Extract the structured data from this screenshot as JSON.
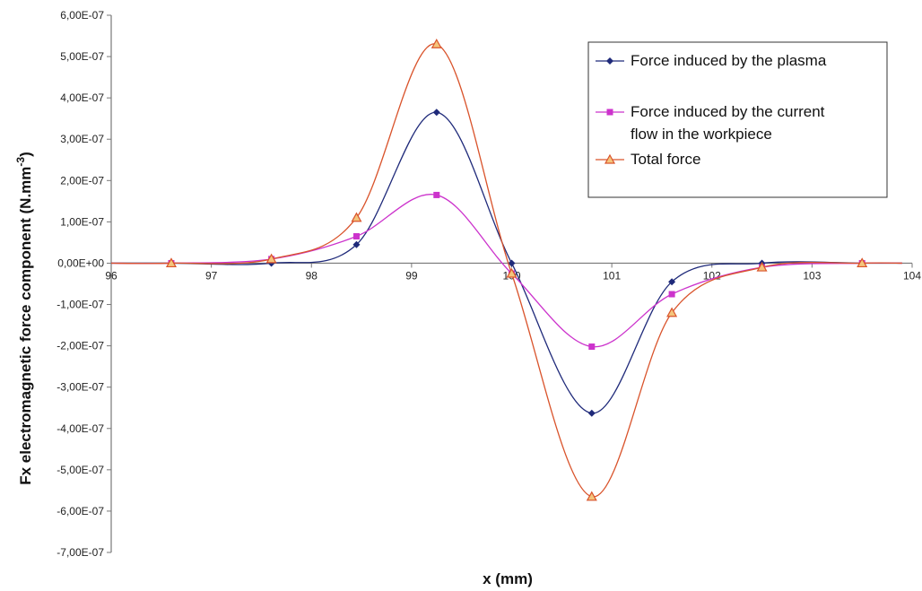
{
  "chart_data": {
    "type": "line",
    "xlabel": "x (mm)",
    "ylabel_main": "Fx electromagnetic force component (N.mm",
    "ylabel_sup": "-3",
    "ylabel_close": ")",
    "xlim": [
      96,
      104
    ],
    "ylim": [
      -7e-07,
      6e-07
    ],
    "x_ticks": [
      96,
      97,
      98,
      99,
      100,
      101,
      102,
      103,
      104
    ],
    "x_tick_labels": [
      "96",
      "97",
      "98",
      "99",
      "100",
      "101",
      "102",
      "103",
      "104"
    ],
    "y_ticks": [
      6e-07,
      5e-07,
      4e-07,
      3e-07,
      2e-07,
      1e-07,
      0,
      -1e-07,
      -2e-07,
      -3e-07,
      -4e-07,
      -5e-07,
      -6e-07,
      -7e-07
    ],
    "y_tick_labels": [
      "6,00E-07",
      "5,00E-07",
      "4,00E-07",
      "3,00E-07",
      "2,00E-07",
      "1,00E-07",
      "0,00E+00",
      "-1,00E-07",
      "-2,00E-07",
      "-3,00E-07",
      "-4,00E-07",
      "-5,00E-07",
      "-6,00E-07",
      "-7,00E-07"
    ],
    "grid": false,
    "legend_position": "top-right",
    "series": [
      {
        "name": "Force induced by the plasma",
        "color": "#1f2a7a",
        "marker": "diamond",
        "x": [
          96.6,
          97.6,
          98.45,
          99.25,
          100.0,
          100.8,
          101.6,
          102.5,
          103.5
        ],
        "y": [
          0.0,
          0.0,
          4.5e-08,
          3.65e-07,
          0.0,
          -3.63e-07,
          -4.5e-08,
          0.0,
          0.0
        ]
      },
      {
        "name": "Force induced by the current flow in the workpiece",
        "color": "#cc33cc",
        "marker": "square",
        "x": [
          96.6,
          97.6,
          98.45,
          99.25,
          100.0,
          100.8,
          101.6,
          102.5,
          103.5
        ],
        "y": [
          0.0,
          1e-08,
          6.5e-08,
          1.65e-07,
          -2.5e-08,
          -2.02e-07,
          -7.5e-08,
          -1e-08,
          0.0
        ]
      },
      {
        "name": "Total force",
        "color": "#d9532b",
        "marker": "triangle",
        "x": [
          96.6,
          97.6,
          98.45,
          99.25,
          100.0,
          100.8,
          101.6,
          102.5,
          103.5
        ],
        "y": [
          0.0,
          1e-08,
          1.1e-07,
          5.3e-07,
          -2.5e-08,
          -5.65e-07,
          -1.2e-07,
          -1e-08,
          0.0
        ]
      }
    ],
    "legend_lines": [
      [
        "Force induced by the plasma"
      ],
      [
        "Force induced by the current",
        "flow in the workpiece"
      ],
      [
        "Total force"
      ]
    ]
  }
}
